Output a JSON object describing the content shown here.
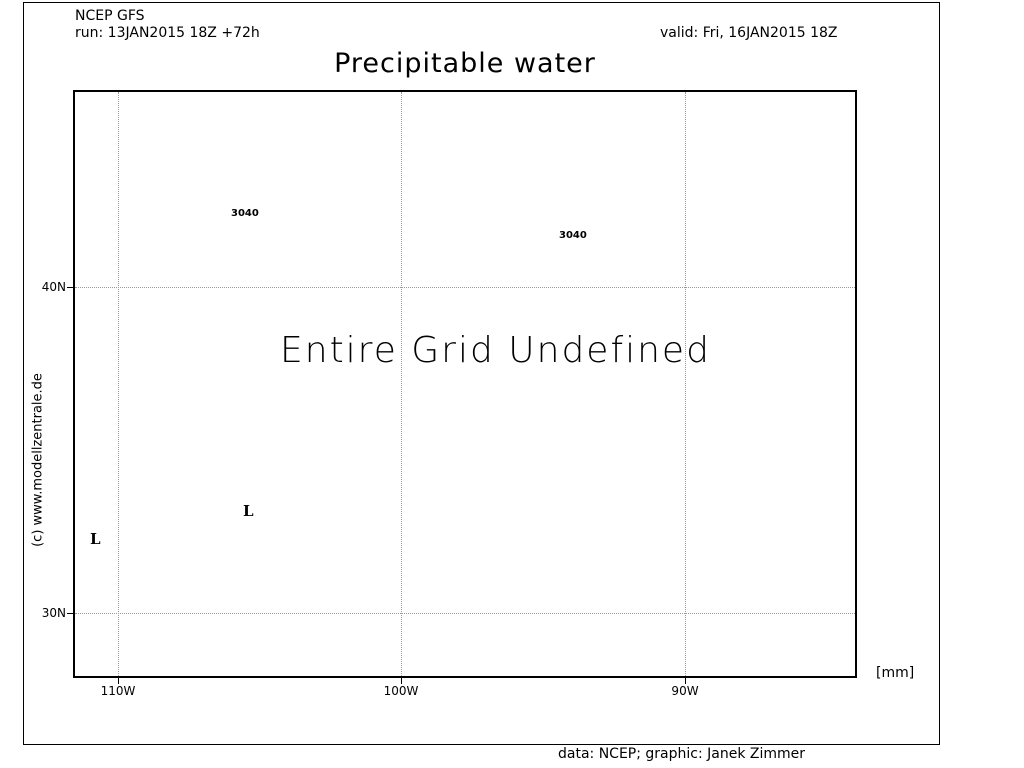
{
  "header": {
    "model": "NCEP GFS",
    "run": "run: 13JAN2015 18Z +72h",
    "valid": "valid: Fri, 16JAN2015 18Z"
  },
  "title": "Precipitable water",
  "plot": {
    "message": "Entire Grid Undefined",
    "unit": "[mm]",
    "x_axis_labels": [
      "110W",
      "100W",
      "90W"
    ],
    "y_axis_labels": [
      "40N",
      "30N"
    ],
    "contour_labels": [
      "3040",
      "3040"
    ],
    "pressure_markers": [
      "L",
      "L"
    ]
  },
  "credits": {
    "side": "(c)  www.modellzentrale.de",
    "bottom": "data: NCEP; graphic: Janek Zimmer"
  }
}
